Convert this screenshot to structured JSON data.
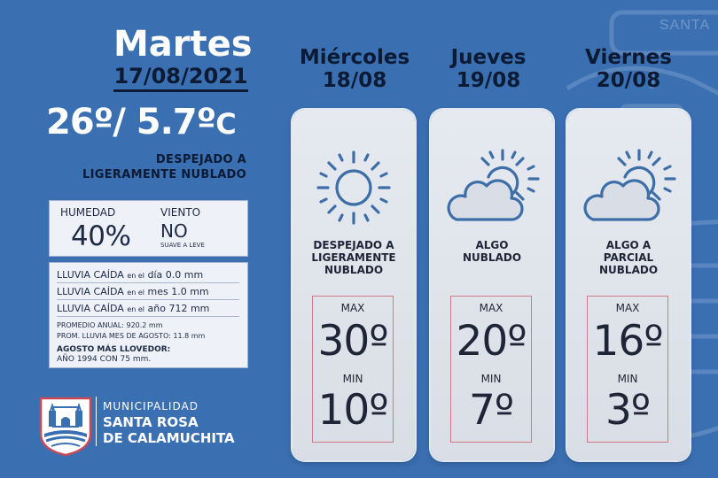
{
  "background_color": "#3a6fb2",
  "accent_dark": "#0c1a33",
  "background_word": "SANTA",
  "today": {
    "day": "Martes",
    "date": "17/08/2021",
    "temp_max": "26º",
    "separator": "/",
    "temp_min": "5.7º",
    "temp_unit": "C",
    "condition_line1": "DESPEJADO  A",
    "condition_line2": "LIGERAMENTE NUBLADO",
    "humidity_label": "HUMEDAD",
    "humidity_value": "40%",
    "wind_label": "VIENTO",
    "wind_direction": "NO",
    "wind_description": "SUAVE A LEVE"
  },
  "rain": {
    "day_label": "LLUVIA CAÍDA",
    "day_connector": "en el",
    "day_period": "día",
    "day_value": "0.0 mm",
    "month_label": "LLUVIA CAÍDA",
    "month_connector": "en el",
    "month_period": "mes",
    "month_value": "1.0 mm",
    "year_label": "LLUVIA CAÍDA",
    "year_connector": "en el",
    "year_period": "año",
    "year_value": "712 mm",
    "annual_avg": "PROMEDIO ANUAL: 920.2 mm",
    "august_avg": "PROM. LLUVIA MES DE AGOSTO: 11.8 mm",
    "rainiest_title": "AGOSTO MÁS LLOVEDOR:",
    "rainiest_value": "AÑO 1994 CON 75 mm."
  },
  "logo": {
    "line1": "MUNICIPALIDAD",
    "line2": "SANTA ROSA",
    "line3": "DE CALAMUCHITA",
    "crest_icon": "municipal-crest-icon"
  },
  "forecast": [
    {
      "day": "Miércoles",
      "date": "18/08",
      "icon": "sun-icon",
      "desc_line1": "DESPEJADO A",
      "desc_line2": "LIGERAMENTE",
      "desc_line3": "NUBLADO",
      "max_label": "MAX",
      "max": "30º",
      "min_label": "MIN",
      "min": "10º"
    },
    {
      "day": "Jueves",
      "date": "19/08",
      "icon": "partly-cloudy-icon",
      "desc_line1": "ALGO",
      "desc_line2": "NUBLADO",
      "desc_line3": "",
      "max_label": "MAX",
      "max": "20º",
      "min_label": "MIN",
      "min": "7º"
    },
    {
      "day": "Viernes",
      "date": "20/08",
      "icon": "partly-cloudy-icon",
      "desc_line1": "ALGO A",
      "desc_line2": "PARCIAL",
      "desc_line3": "NUBLADO",
      "max_label": "MAX",
      "max": "16º",
      "min_label": "MIN",
      "min": "3º"
    }
  ]
}
